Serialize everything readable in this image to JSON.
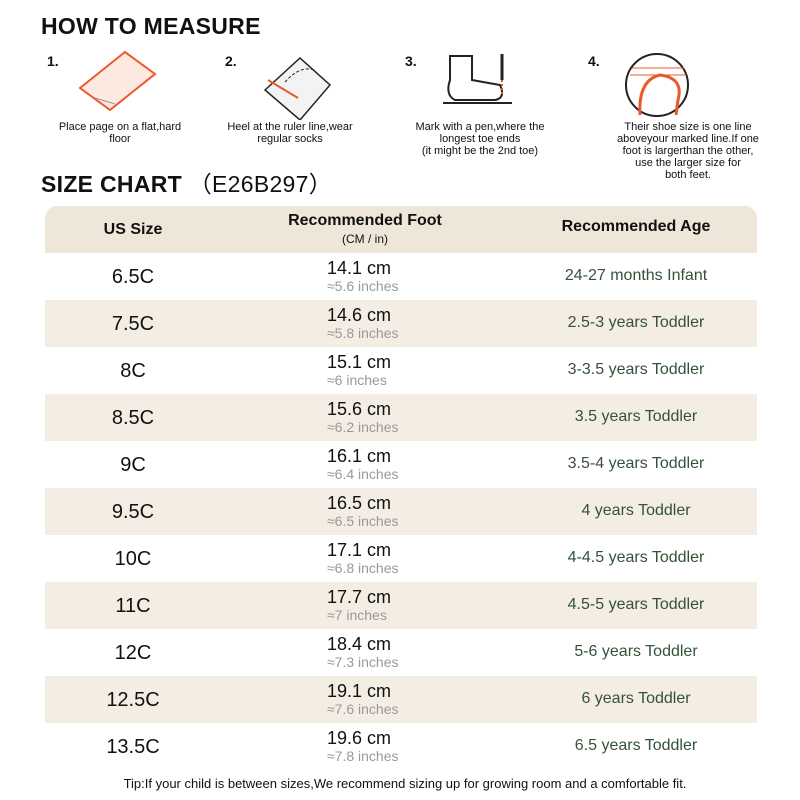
{
  "measure": {
    "title": "HOW TO MEASURE",
    "steps": [
      {
        "number": "1.",
        "caption": [
          "Place page on a flat,hard",
          "floor"
        ]
      },
      {
        "number": "2.",
        "caption": [
          "Heel at the ruler line,wear",
          "regular socks"
        ]
      },
      {
        "number": "3.",
        "caption": [
          "Mark with a pen,where the",
          "longest toe ends",
          "(it might be the 2nd toe)"
        ]
      },
      {
        "number": "4.",
        "caption": [
          "Their shoe size is one line",
          "aboveyour marked line.If one",
          "foot is largerthan the other,",
          "use the larger size for",
          "both feet."
        ]
      }
    ]
  },
  "size_chart": {
    "title": "SIZE CHART",
    "code": "（E26B297）",
    "header": [
      "US Size",
      "Recommended Foot",
      "(CM / in)",
      "Recommended Age"
    ],
    "rows": [
      [
        "6.5C",
        "14.1 cm",
        "≈5.6 inches",
        "24-27 months Infant"
      ],
      [
        "7.5C",
        "14.6 cm",
        "≈5.8 inches",
        "2.5-3 years Toddler"
      ],
      [
        "8C",
        "15.1 cm",
        "≈6 inches",
        "3-3.5 years Toddler"
      ],
      [
        "8.5C",
        "15.6 cm",
        "≈6.2 inches",
        "3.5 years Toddler"
      ],
      [
        "9C",
        "16.1 cm",
        "≈6.4 inches",
        "3.5-4 years Toddler"
      ],
      [
        "9.5C",
        "16.5 cm",
        "≈6.5 inches",
        "4 years Toddler"
      ],
      [
        "10C",
        "17.1 cm",
        "≈6.8 inches",
        "4-4.5 years Toddler"
      ],
      [
        "11C",
        "17.7 cm",
        "≈7 inches",
        "4.5-5 years Toddler"
      ],
      [
        "12C",
        "18.4 cm",
        "≈7.3 inches",
        "5-6 years Toddler"
      ],
      [
        "12.5C",
        "19.1 cm",
        "≈7.6 inches",
        "6 years Toddler"
      ],
      [
        "13.5C",
        "19.6 cm",
        "≈7.8 inches",
        "6.5 years Toddler"
      ]
    ],
    "tip": "Tip:If your child is between sizes,We recommend sizing up for growing room and a comfortable fit."
  }
}
